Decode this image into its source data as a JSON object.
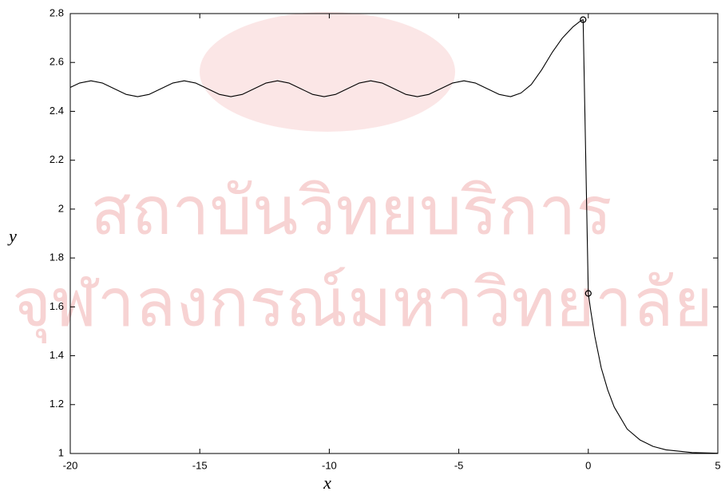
{
  "chart_data": {
    "type": "line",
    "watermark": [
      "สถาบันวิทยบริการ",
      "จุฬาลงกรณ์มหาวิทยาลัย"
    ],
    "x_label": "x",
    "y_label": "y",
    "xlim": [
      -20,
      5
    ],
    "xticks": [
      -20,
      -15,
      -10,
      -5,
      0,
      5
    ],
    "ylim": [
      1,
      2.8
    ],
    "yticks": [
      1,
      1.2,
      1.4,
      1.6,
      1.8,
      2,
      2.2,
      2.4,
      2.6,
      2.8
    ],
    "series": [
      {
        "color": "#000000",
        "x": [
          -20,
          -19.65,
          -19.2,
          -18.75,
          -18.3,
          -17.85,
          -17.4,
          -16.95,
          -16.5,
          -16.05,
          -15.6,
          -15.15,
          -14.7,
          -14.25,
          -13.8,
          -13.35,
          -12.9,
          -12.45,
          -12.0,
          -11.55,
          -11.1,
          -10.65,
          -10.2,
          -9.75,
          -9.3,
          -8.85,
          -8.4,
          -7.95,
          -7.5,
          -7.05,
          -6.6,
          -6.15,
          -5.7,
          -5.25,
          -4.8,
          -4.35,
          -3.9,
          -3.45,
          -3.0,
          -2.6,
          -2.2,
          -1.8,
          -1.4,
          -1.0,
          -0.6,
          -0.3,
          -0.2,
          0.0,
          0.1,
          0.25,
          0.5,
          0.75,
          1.0,
          1.5,
          2.0,
          2.5,
          3.0,
          4.0,
          5.0
        ],
        "values": [
          2.498,
          2.5155,
          2.525,
          2.5155,
          2.4925,
          2.4695,
          2.46,
          2.4695,
          2.4925,
          2.5155,
          2.525,
          2.5155,
          2.4925,
          2.4695,
          2.46,
          2.4695,
          2.4925,
          2.5155,
          2.525,
          2.5155,
          2.4925,
          2.4695,
          2.46,
          2.4695,
          2.4925,
          2.5155,
          2.525,
          2.5155,
          2.4925,
          2.4695,
          2.46,
          2.4695,
          2.4925,
          2.5155,
          2.525,
          2.5155,
          2.4925,
          2.4695,
          2.46,
          2.475,
          2.51,
          2.57,
          2.64,
          2.7,
          2.745,
          2.77,
          2.775,
          1.655,
          1.58,
          1.48,
          1.35,
          1.26,
          1.19,
          1.1,
          1.055,
          1.029,
          1.015,
          1.004,
          1.001
        ]
      },
      {
        "color": "#000000",
        "marker": "circle",
        "x": [
          -0.2,
          0.0
        ],
        "values": [
          2.775,
          1.655
        ]
      }
    ]
  }
}
